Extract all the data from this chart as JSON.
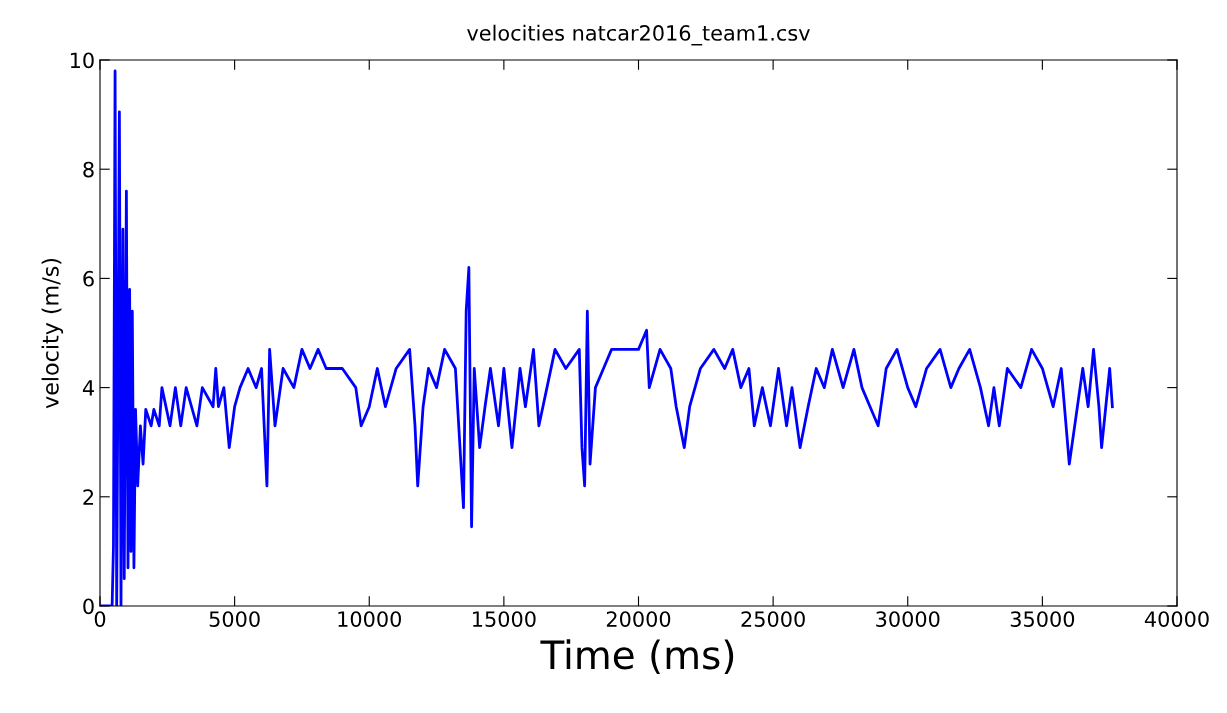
{
  "chart_data": {
    "type": "line",
    "title": "velocities natcar2016_team1.csv",
    "xlabel": "Time (ms)",
    "ylabel": "velocity (m/s)",
    "xlim": [
      0,
      40000
    ],
    "xticks": [
      0,
      5000,
      10000,
      15000,
      20000,
      25000,
      30000,
      35000,
      40000
    ],
    "ylim": [
      0,
      10
    ],
    "yticks": [
      0,
      2,
      4,
      6,
      8,
      10
    ],
    "grid": false,
    "legend": false,
    "marker": "none",
    "line_style": "solid",
    "series": [
      {
        "color": "#0000ff",
        "x": [
          0,
          450,
          500,
          560,
          620,
          720,
          780,
          850,
          900,
          980,
          1040,
          1100,
          1150,
          1200,
          1260,
          1320,
          1400,
          1500,
          1600,
          1700,
          1900,
          2000,
          2200,
          2300,
          2600,
          2800,
          3000,
          3200,
          3600,
          3800,
          4200,
          4300,
          4400,
          4600,
          4800,
          5000,
          5200,
          5500,
          5800,
          6000,
          6200,
          6300,
          6500,
          6800,
          7200,
          7500,
          7800,
          8100,
          8400,
          9000,
          9500,
          9700,
          10000,
          10300,
          10600,
          11000,
          11500,
          11700,
          11800,
          12000,
          12200,
          12500,
          12800,
          13200,
          13500,
          13600,
          13700,
          13800,
          13900,
          14100,
          14300,
          14500,
          14800,
          15000,
          15300,
          15600,
          15800,
          16100,
          16300,
          16600,
          16900,
          17300,
          17800,
          17900,
          18000,
          18100,
          18200,
          18400,
          18700,
          19000,
          20000,
          20300,
          20400,
          20800,
          21200,
          21400,
          21700,
          21900,
          22300,
          22800,
          23200,
          23500,
          23800,
          24100,
          24300,
          24600,
          24900,
          25200,
          25500,
          25700,
          26000,
          26300,
          26600,
          26900,
          27200,
          27600,
          28000,
          28300,
          28600,
          28900,
          29200,
          29600,
          30000,
          30300,
          30700,
          31200,
          31600,
          31900,
          32300,
          32700,
          33000,
          33200,
          33400,
          33700,
          34200,
          34600,
          35000,
          35400,
          35700,
          36000,
          36200,
          36500,
          36700,
          36900,
          37100,
          37200,
          37500,
          37600
        ],
        "values": [
          0,
          0,
          1.1,
          9.8,
          0,
          9.05,
          0,
          6.9,
          0.5,
          7.6,
          0.7,
          5.8,
          1,
          5.4,
          0.7,
          3.6,
          2.2,
          3.3,
          2.6,
          3.6,
          3.3,
          3.6,
          3.3,
          4.0,
          3.3,
          4.0,
          3.3,
          4.0,
          3.3,
          4.0,
          3.65,
          4.35,
          3.65,
          4.0,
          2.9,
          3.65,
          4.0,
          4.35,
          4.0,
          4.35,
          2.2,
          4.7,
          3.3,
          4.35,
          4.0,
          4.7,
          4.35,
          4.7,
          4.35,
          4.35,
          4.0,
          3.3,
          3.65,
          4.35,
          3.65,
          4.35,
          4.7,
          3.3,
          2.2,
          3.65,
          4.35,
          4.0,
          4.7,
          4.35,
          1.8,
          5.4,
          6.2,
          1.45,
          4.35,
          2.9,
          3.65,
          4.35,
          3.3,
          4.35,
          2.9,
          4.35,
          3.65,
          4.7,
          3.3,
          4.0,
          4.7,
          4.35,
          4.7,
          2.9,
          2.2,
          5.4,
          2.6,
          4.0,
          4.35,
          4.7,
          4.7,
          5.05,
          4.0,
          4.7,
          4.35,
          3.65,
          2.9,
          3.65,
          4.35,
          4.7,
          4.35,
          4.7,
          4.0,
          4.35,
          3.3,
          4.0,
          3.3,
          4.35,
          3.3,
          4.0,
          2.9,
          3.65,
          4.35,
          4.0,
          4.7,
          4.0,
          4.7,
          4.0,
          3.65,
          3.3,
          4.35,
          4.7,
          4.0,
          3.65,
          4.35,
          4.7,
          4.0,
          4.35,
          4.7,
          4.0,
          3.3,
          4.0,
          3.3,
          4.35,
          4.0,
          4.7,
          4.35,
          3.65,
          4.35,
          2.6,
          3.3,
          4.35,
          3.65,
          4.7,
          3.65,
          2.9,
          4.35,
          3.65
        ]
      }
    ]
  }
}
